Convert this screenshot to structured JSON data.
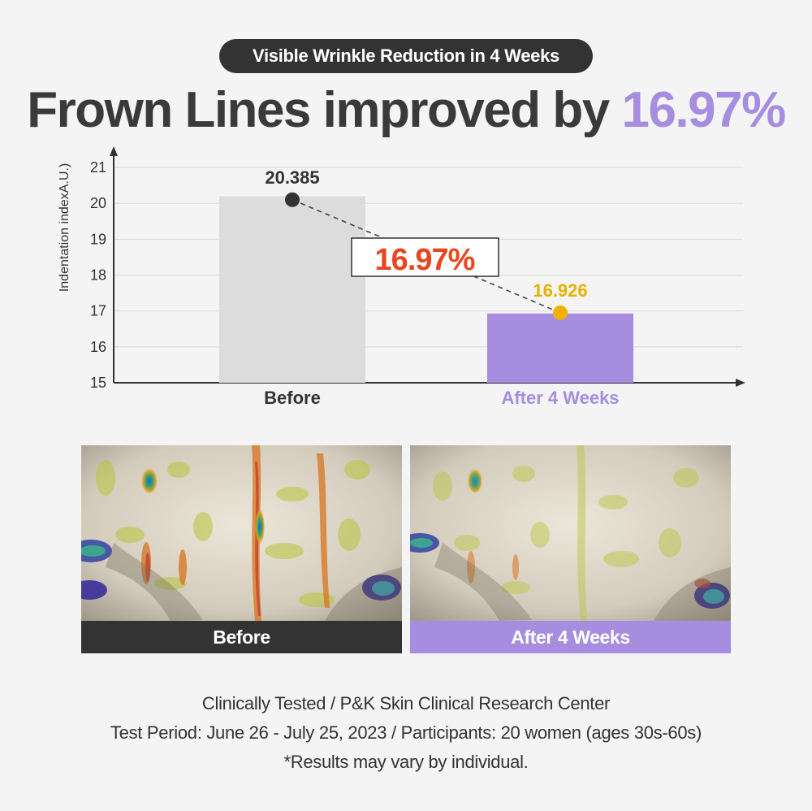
{
  "header": {
    "pill_text": "Visible Wrinkle Reduction in 4 Weeks",
    "headline_text": "Frown Lines improved by ",
    "headline_value": "16.97%"
  },
  "chart_data": {
    "type": "bar",
    "categories": [
      "Before",
      "After 4 Weeks"
    ],
    "values": [
      20.385,
      16.926
    ],
    "value_labels": [
      "20.385",
      "16.926"
    ],
    "ylabel": "Indentation indexA.U.)",
    "xlabel": "",
    "ylim": [
      15,
      21
    ],
    "yticks": [
      15,
      16,
      17,
      18,
      19,
      20,
      21
    ],
    "grid": true,
    "legend": "none",
    "annotation": "16.97%",
    "colors": {
      "bars": [
        "#dcdcdc",
        "#a68ddf"
      ],
      "points": [
        "#333333",
        "#f2b100"
      ],
      "value_labels": [
        "#333333",
        "#e8b000"
      ],
      "category_labels": [
        "#333333",
        "#a68ddf"
      ],
      "annotation": "#e8461e",
      "grid": "#d8d8d8",
      "axis": "#333333"
    }
  },
  "photos": {
    "before_label": "Before",
    "after_label": "After 4 Weeks"
  },
  "footer": {
    "line1": "Clinically Tested / P&K Skin Clinical Research Center",
    "line2": "Test Period: June 26 - July 25, 2023 / Participants: 20 women (ages 30s-60s)",
    "line3": "*Results may vary by individual."
  },
  "colors": {
    "accent": "#a68ddf",
    "dark": "#333333",
    "background": "#f4f4f4"
  }
}
